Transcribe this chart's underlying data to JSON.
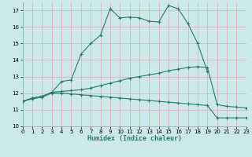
{
  "xlabel": "Humidex (Indice chaleur)",
  "bg_color": "#cce8e8",
  "grid_color": "#b8d8d8",
  "line_color": "#2a7a6a",
  "xlim": [
    0,
    23
  ],
  "ylim": [
    10,
    17.5
  ],
  "yticks": [
    10,
    11,
    12,
    13,
    14,
    15,
    16,
    17
  ],
  "xticks": [
    0,
    1,
    2,
    3,
    4,
    5,
    6,
    7,
    8,
    9,
    10,
    11,
    12,
    13,
    14,
    15,
    16,
    17,
    18,
    19,
    20,
    21,
    22,
    23
  ],
  "line1": {
    "x": [
      0,
      1,
      2,
      3,
      4,
      5,
      6,
      7,
      8,
      9,
      10,
      11,
      12,
      13,
      14,
      15,
      16,
      17,
      18,
      19,
      20,
      21,
      22,
      23
    ],
    "y": [
      11.5,
      11.7,
      11.8,
      12.05,
      12.7,
      12.8,
      14.35,
      15.0,
      15.5,
      17.1,
      16.55,
      16.6,
      16.55,
      16.35,
      16.3,
      17.3,
      17.1,
      16.2,
      15.0,
      13.3,
      null,
      null,
      null,
      null
    ]
  },
  "line2": {
    "x": [
      0,
      1,
      2,
      3,
      4,
      5,
      6,
      7,
      8,
      9,
      10,
      11,
      12,
      13,
      14,
      15,
      16,
      17,
      18,
      19,
      20,
      21,
      22,
      23
    ],
    "y": [
      11.5,
      11.7,
      11.8,
      12.05,
      12.1,
      12.15,
      12.2,
      12.3,
      12.45,
      12.6,
      12.75,
      12.9,
      13.0,
      13.1,
      13.2,
      13.35,
      13.45,
      13.55,
      13.6,
      13.55,
      11.3,
      11.2,
      11.15,
      11.1
    ]
  },
  "line3": {
    "x": [
      0,
      1,
      2,
      3,
      4,
      5,
      6,
      7,
      8,
      9,
      10,
      11,
      12,
      13,
      14,
      15,
      16,
      17,
      18,
      19,
      20,
      21,
      22,
      23
    ],
    "y": [
      11.5,
      11.65,
      11.75,
      12.0,
      12.0,
      11.95,
      11.9,
      11.85,
      11.8,
      11.75,
      11.7,
      11.65,
      11.6,
      11.55,
      11.5,
      11.45,
      11.4,
      11.35,
      11.3,
      11.25,
      10.5,
      10.5,
      10.5,
      10.5
    ]
  }
}
